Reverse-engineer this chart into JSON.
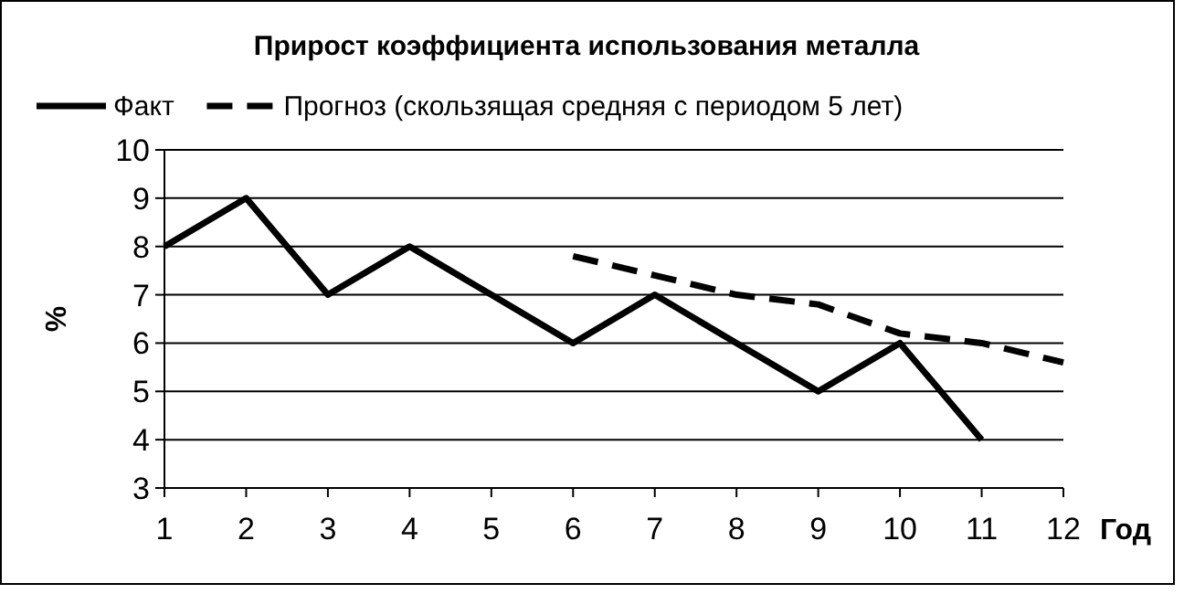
{
  "chart_data": {
    "type": "line",
    "title": "Прирост коэффициента использования металла",
    "xlabel": "Год",
    "ylabel": "%",
    "x": [
      1,
      2,
      3,
      4,
      5,
      6,
      7,
      8,
      9,
      10,
      11,
      12
    ],
    "series": [
      {
        "name": "Факт",
        "color": "#000000",
        "line_style": "solid",
        "values": [
          8,
          9,
          7,
          8,
          7,
          6,
          7,
          6,
          5,
          6,
          4,
          null
        ]
      },
      {
        "name": "Прогноз (скользящая средняя с периодом 5 лет)",
        "color": "#000000",
        "line_style": "dashed",
        "values": [
          null,
          null,
          null,
          null,
          null,
          7.8,
          7.4,
          7.0,
          6.8,
          6.2,
          6.0,
          5.6
        ]
      }
    ],
    "xlim": [
      1,
      12
    ],
    "xticks": [
      1,
      2,
      3,
      4,
      5,
      6,
      7,
      8,
      9,
      10,
      11,
      12
    ],
    "ylim": [
      3,
      10
    ],
    "yticks": [
      3,
      4,
      5,
      6,
      7,
      8,
      9,
      10
    ],
    "grid": "y",
    "legend": "top",
    "marker": "none"
  }
}
